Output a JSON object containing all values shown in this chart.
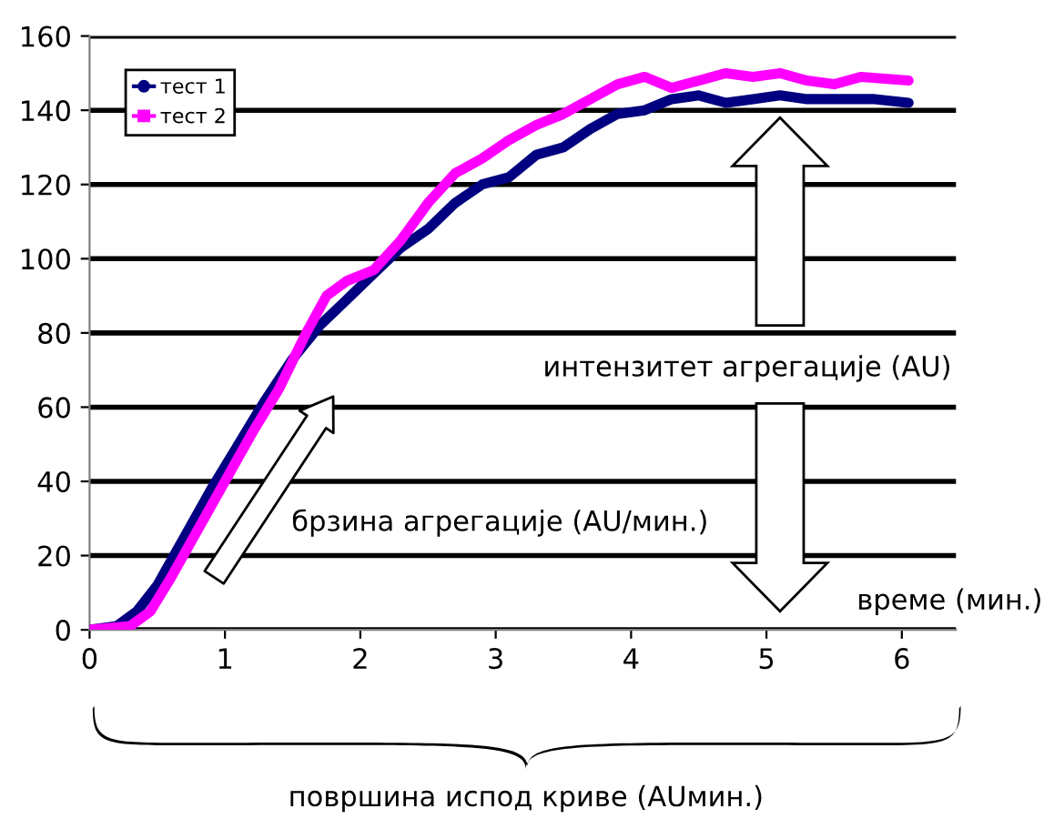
{
  "chart_data": {
    "type": "line",
    "xlabel": "време (мин.)",
    "xlim": [
      0,
      6.4
    ],
    "xticks": [
      0,
      1,
      2,
      3,
      4,
      5,
      6
    ],
    "ylim": [
      0,
      160
    ],
    "yticks": [
      0,
      20,
      40,
      60,
      80,
      100,
      120,
      140,
      160
    ],
    "grid": "y",
    "legend": "top left",
    "series": [
      {
        "name": "тест 1",
        "color": "#000080",
        "x": [
          0,
          0.2,
          0.35,
          0.5,
          0.7,
          0.9,
          1.1,
          1.3,
          1.5,
          1.7,
          1.9,
          2.1,
          2.3,
          2.5,
          2.7,
          2.9,
          3.1,
          3.3,
          3.5,
          3.7,
          3.9,
          4.1,
          4.3,
          4.5,
          4.7,
          4.9,
          5.1,
          5.3,
          5.5,
          5.8,
          6.05
        ],
        "values": [
          0,
          1,
          5,
          12,
          25,
          38,
          50,
          62,
          73,
          82,
          89,
          96,
          103,
          108,
          115,
          120,
          122,
          128,
          130,
          135,
          139,
          140,
          143,
          144,
          142,
          143,
          144,
          143,
          143,
          143,
          142
        ]
      },
      {
        "name": "тест 2",
        "color": "#ff00ff",
        "x": [
          0,
          0.3,
          0.45,
          0.6,
          0.8,
          1.0,
          1.2,
          1.4,
          1.6,
          1.75,
          1.9,
          2.1,
          2.3,
          2.5,
          2.7,
          2.9,
          3.1,
          3.3,
          3.5,
          3.7,
          3.9,
          4.1,
          4.3,
          4.5,
          4.7,
          4.9,
          5.1,
          5.3,
          5.5,
          5.7,
          6.05
        ],
        "values": [
          0,
          1,
          5,
          14,
          27,
          40,
          53,
          65,
          80,
          90,
          94,
          97,
          105,
          115,
          123,
          127,
          132,
          136,
          139,
          143,
          147,
          149,
          146,
          148,
          150,
          149,
          150,
          148,
          147,
          149,
          148
        ]
      }
    ],
    "annotations": [
      "интензитет агрегације (AU)",
      "брзина агрегације (AU/мин.)",
      "површина испод криве (AUмин.)"
    ]
  }
}
